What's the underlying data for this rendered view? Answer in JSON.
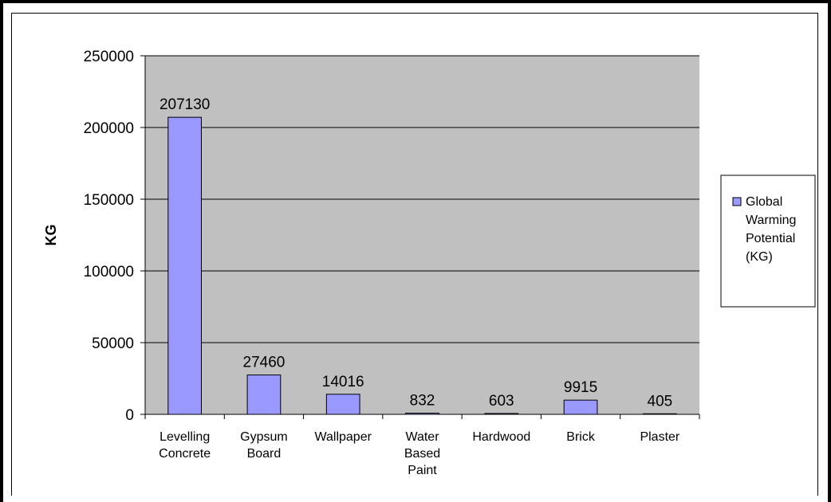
{
  "chart_data": {
    "type": "bar",
    "categories": [
      [
        "Levelling",
        "Concrete"
      ],
      [
        "Gypsum",
        "Board"
      ],
      [
        "Wallpaper"
      ],
      [
        "Water",
        "Based",
        "Paint"
      ],
      [
        "Hardwood"
      ],
      [
        "Brick"
      ],
      [
        "Plaster"
      ]
    ],
    "series": [
      {
        "name": "Global Warming Potential (KG)",
        "values": [
          207130,
          27460,
          14016,
          832,
          603,
          9915,
          405
        ]
      }
    ],
    "data_labels": [
      "207130",
      "27460",
      "14016",
      "832",
      "603",
      "9915",
      "405"
    ],
    "ylabel": "KG",
    "ylim": [
      0,
      250000
    ],
    "yticks": [
      0,
      50000,
      100000,
      150000,
      200000,
      250000
    ],
    "ytick_labels": [
      "0",
      "50000",
      "100000",
      "150000",
      "200000",
      "250000"
    ],
    "grid": true,
    "legend_position": "right",
    "legend_lines": [
      "Global",
      "Warming",
      "Potential",
      "(KG)"
    ],
    "colors": {
      "bar": "#9999ff",
      "plot_bg": "#c0c0c0",
      "gridline": "#000000"
    }
  }
}
